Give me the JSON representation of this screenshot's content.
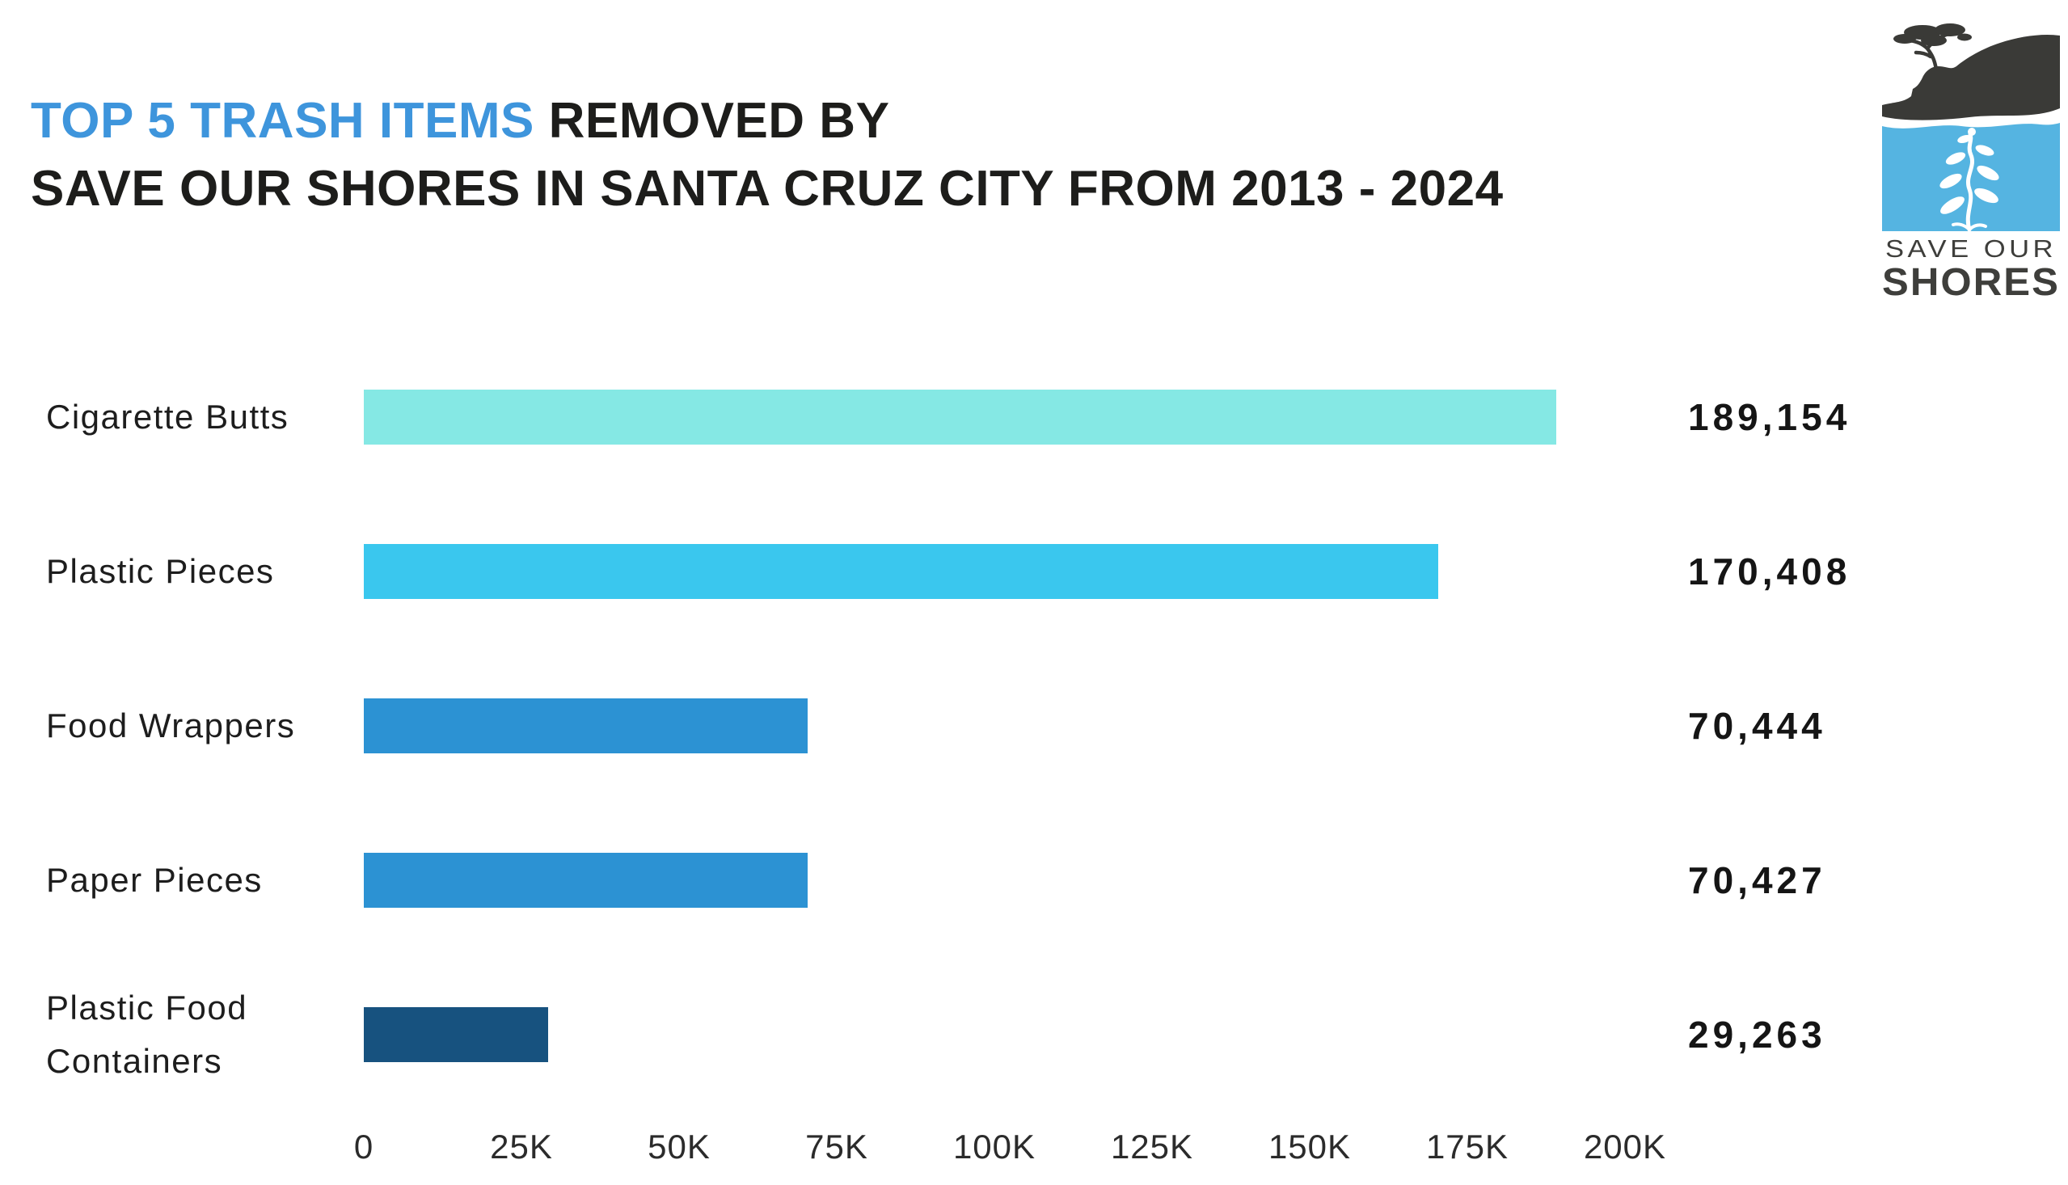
{
  "header": {
    "title_line1_highlight": "TOP 5 TRASH ITEMS",
    "title_line1_rest": " REMOVED BY",
    "title_line2": "SAVE OUR SHORES IN SANTA CRUZ CITY FROM 2013 - 2024",
    "title_highlight_color": "#3E95DC",
    "title_text_color": "#1d1d1b"
  },
  "logo": {
    "text_line1": "SAVE OUR",
    "text_line2": "SHORES",
    "land_color": "#3A3A37",
    "water_color": "#55B4E1",
    "kelp_color": "#FFFFFF",
    "text_color": "#3E3E3B"
  },
  "chart_data": {
    "type": "bar",
    "orientation": "horizontal",
    "title": "TOP 5 TRASH ITEMS REMOVED BY SAVE OUR SHORES IN SANTA CRUZ CITY FROM 2013 - 2024",
    "categories": [
      "Cigarette Butts",
      "Plastic Pieces",
      "Food Wrappers",
      "Paper Pieces",
      "Plastic Food Containers"
    ],
    "values": [
      189154,
      170408,
      70444,
      70427,
      29263
    ],
    "value_labels": [
      "189,154",
      "170,408",
      "70,444",
      "70,427",
      "29,263"
    ],
    "bar_colors": [
      "#85E8E4",
      "#3AC7EE",
      "#2C92D3",
      "#2C92D3",
      "#17527F"
    ],
    "xlim": [
      0,
      200000
    ],
    "x_tick_labels": [
      "0",
      "25K",
      "50K",
      "75K",
      "100K",
      "125K",
      "150K",
      "175K",
      "200K"
    ],
    "grid": false,
    "legend": false,
    "data_labels_position": "right"
  }
}
